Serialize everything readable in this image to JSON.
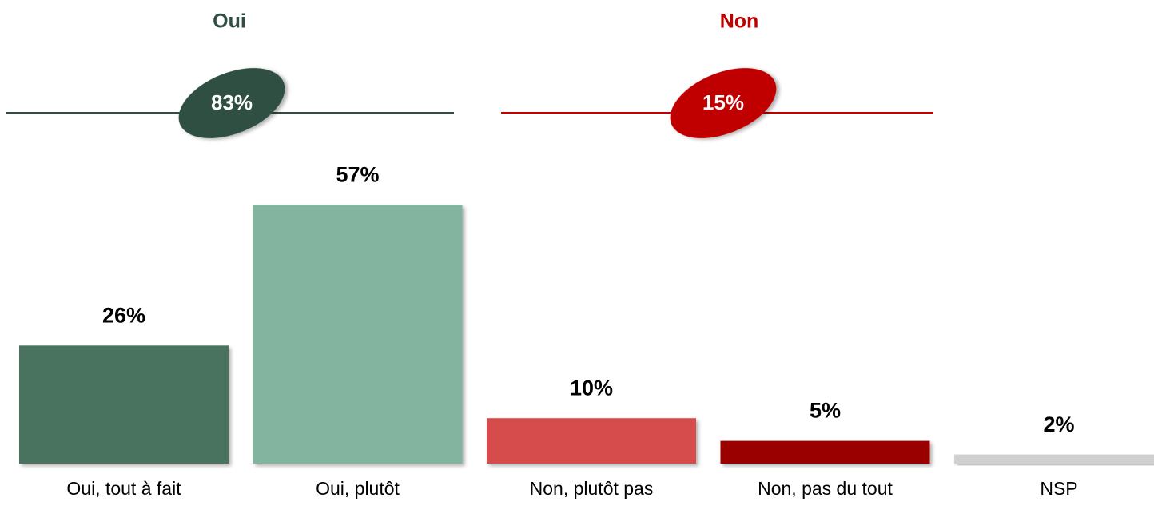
{
  "chart_data": {
    "type": "bar",
    "categories": [
      "Oui, tout à fait",
      "Oui, plutôt",
      "Non, plutôt pas",
      "Non, pas du tout",
      "NSP"
    ],
    "values": [
      26,
      57,
      10,
      5,
      2
    ],
    "value_labels": [
      "26%",
      "57%",
      "10%",
      "5%",
      "2%"
    ],
    "colors": [
      "#48735f",
      "#82b4a0",
      "#d64b4b",
      "#9b0000",
      "#d0d0d0"
    ],
    "groups": [
      {
        "name": "Oui",
        "value": 83,
        "value_label": "83%",
        "color": "#2f4f43"
      },
      {
        "name": "Non",
        "value": 15,
        "value_label": "15%",
        "color": "#c00000"
      }
    ]
  }
}
